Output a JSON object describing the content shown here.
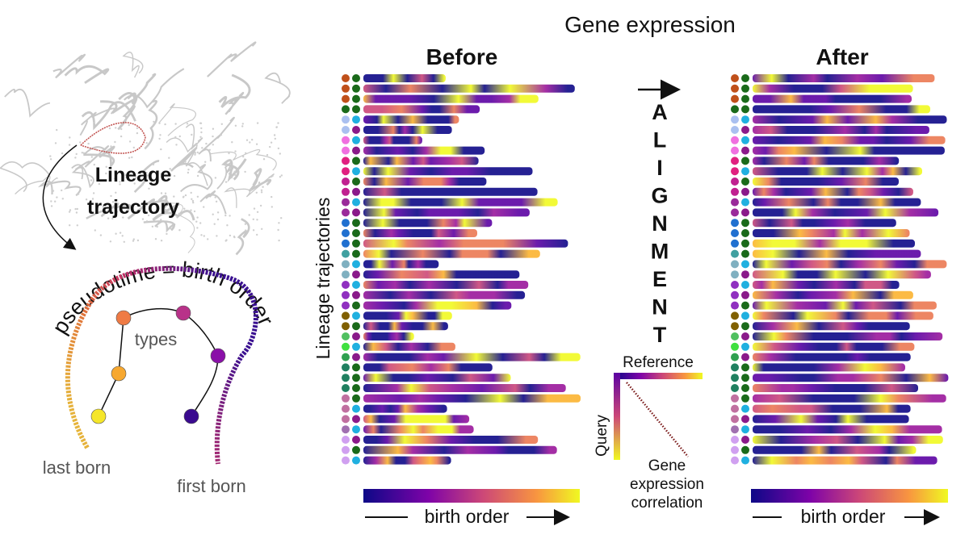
{
  "header": {
    "title": "Gene expression"
  },
  "left_panel": {
    "lineage_label": [
      "Lineage",
      "trajectory"
    ],
    "pseudotime_label": "pseudotime = birth order",
    "types_label": "types",
    "last_born": "last born",
    "first_born": "first born"
  },
  "before_panel": {
    "title": "Before",
    "y_axis_label": "Lineage trajectories",
    "x_axis_label": "birth order"
  },
  "alignment": {
    "letters": [
      "A",
      "L",
      "I",
      "G",
      "N",
      "M",
      "E",
      "N",
      "T"
    ],
    "inset": {
      "reference": "Reference",
      "query": "Query",
      "caption": [
        "Gene",
        "expression",
        "correlation"
      ]
    }
  },
  "after_panel": {
    "title": "After",
    "x_axis_label": "birth order"
  }
}
